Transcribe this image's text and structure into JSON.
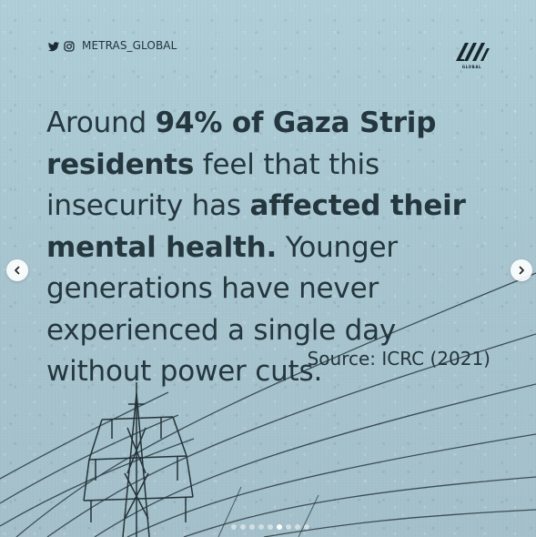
{
  "post": {
    "handle": "METRAS_GLOBAL",
    "logo_text": "GLOBAL",
    "headline_segments": [
      {
        "text": "Around ",
        "bold": false
      },
      {
        "text": "94% of Gaza Strip residents",
        "bold": true
      },
      {
        "text": " feel that this insecurity has ",
        "bold": false
      },
      {
        "text": "affected their mental health.",
        "bold": true
      },
      {
        "text": " Younger generations have never experienced a single day without power cuts.",
        "bold": false
      }
    ],
    "source": "Source: ICRC (2021)"
  },
  "icons": {
    "twitter": "twitter-icon",
    "instagram": "instagram-icon",
    "logo": "metras-logo",
    "previous": "chevron-left-icon",
    "next": "chevron-right-icon"
  },
  "carousel": {
    "total_slides": 9,
    "active_index": 5
  },
  "colors": {
    "background": "#a9c3cd",
    "text": "#24363e",
    "dot_inactive": "rgba(255,255,255,0.5)",
    "dot_active": "#ffffff"
  }
}
